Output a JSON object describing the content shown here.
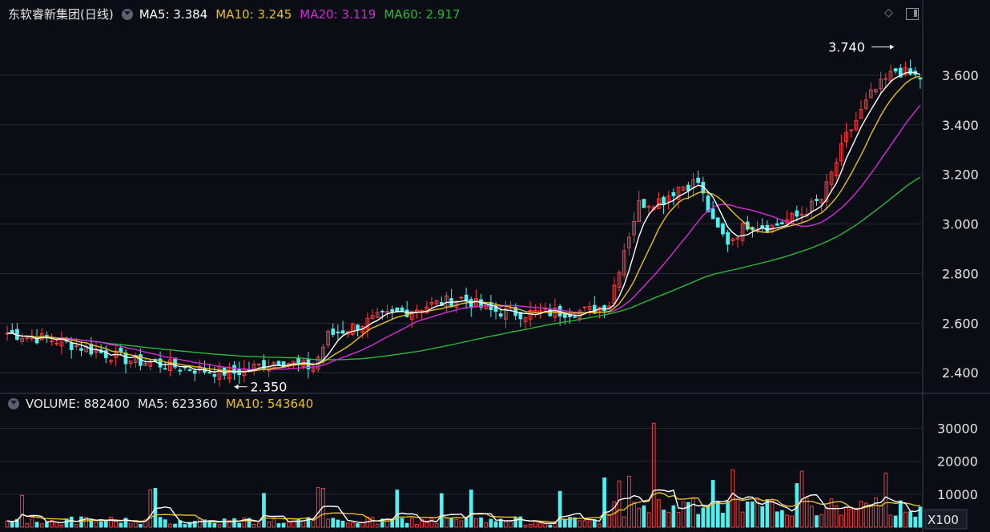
{
  "legend_price": {
    "title": "东软睿新集团(日线)",
    "ma5": "MA5: 3.384",
    "ma10": "MA10: 3.245",
    "ma20": "MA20: 3.119",
    "ma60": "MA60: 2.917"
  },
  "legend_volume": {
    "vol": "VOLUME: 882400",
    "ma5": "MA5: 623360",
    "ma10": "MA10: 543640"
  },
  "colors": {
    "up": "#ff3b3b",
    "down": "#4ff0f0",
    "ma5": "#ffffff",
    "ma10": "#e8c020",
    "ma20": "#d82ad8",
    "ma60": "#2ab83a",
    "grid": "#262a36",
    "axis_text": "#e6e6e6"
  },
  "chart_data": [
    {
      "type": "candlestick",
      "y_ticks": [
        2.4,
        2.6,
        2.8,
        3.0,
        3.2,
        3.4,
        3.6
      ],
      "y_tick_labels": [
        "2.400",
        "2.600",
        "2.800",
        "3.000",
        "3.200",
        "3.400",
        "3.600"
      ],
      "ylim": [
        2.32,
        3.8
      ],
      "annotations": [
        {
          "text": "2.350",
          "value": 2.35,
          "bar_index": 46
        },
        {
          "text": "3.740",
          "value": 3.74,
          "bar_index": 180
        }
      ],
      "grid": true
    },
    {
      "type": "bar",
      "y_ticks": [
        10000,
        20000,
        30000
      ],
      "y_tick_labels": [
        "10000",
        "20000",
        "30000"
      ],
      "ylim": [
        0,
        34000
      ],
      "unit": "X100",
      "grid": true
    }
  ],
  "series_seed": {
    "bars": 186,
    "anchors": [
      [
        0,
        2.56
      ],
      [
        10,
        2.53
      ],
      [
        25,
        2.45
      ],
      [
        40,
        2.41
      ],
      [
        46,
        2.4
      ],
      [
        55,
        2.45
      ],
      [
        62,
        2.42
      ],
      [
        65,
        2.55
      ],
      [
        75,
        2.62
      ],
      [
        85,
        2.67
      ],
      [
        92,
        2.7
      ],
      [
        98,
        2.65
      ],
      [
        105,
        2.64
      ],
      [
        118,
        2.65
      ],
      [
        122,
        2.68
      ],
      [
        125,
        2.9
      ],
      [
        128,
        3.08
      ],
      [
        133,
        3.1
      ],
      [
        136,
        3.15
      ],
      [
        140,
        3.17
      ],
      [
        143,
        3.0
      ],
      [
        146,
        2.93
      ],
      [
        150,
        3.0
      ],
      [
        155,
        2.99
      ],
      [
        160,
        3.03
      ],
      [
        165,
        3.1
      ],
      [
        170,
        3.35
      ],
      [
        175,
        3.52
      ],
      [
        180,
        3.62
      ],
      [
        185,
        3.59
      ]
    ]
  }
}
